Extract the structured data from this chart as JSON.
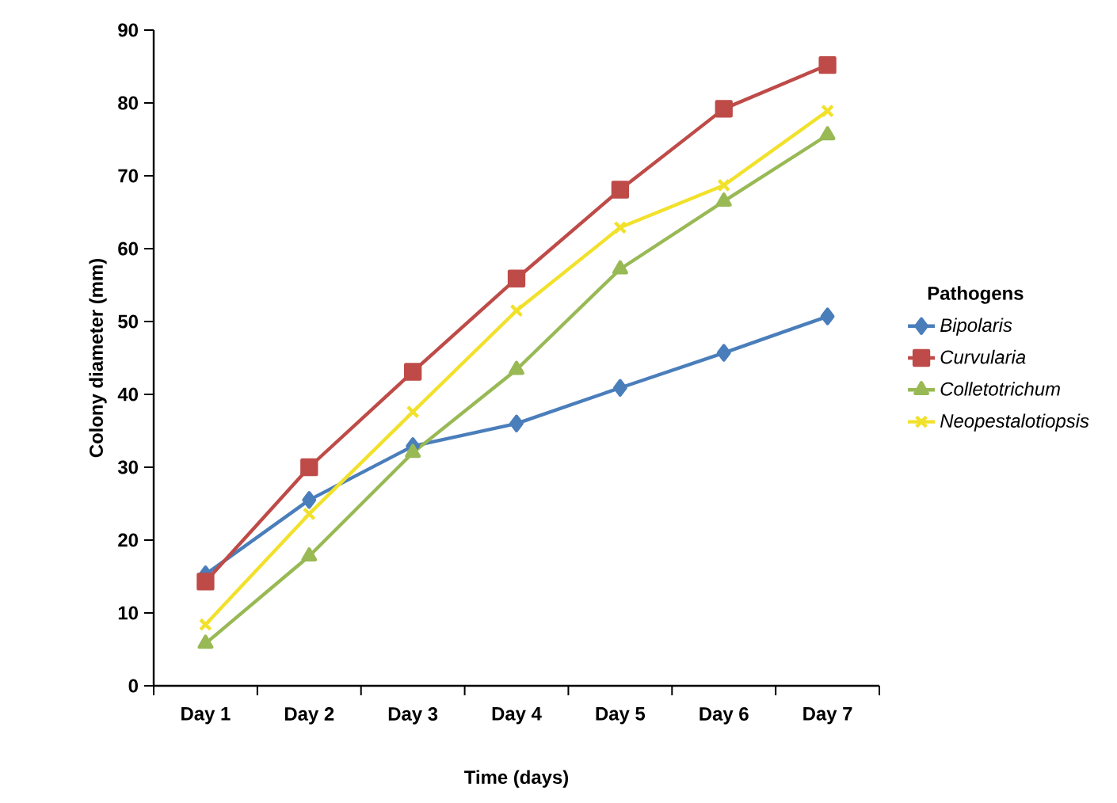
{
  "chart_data": {
    "type": "line",
    "xlabel": "Time (days)",
    "ylabel": "Colony diameter (mm)",
    "legend_title": "Pathogens",
    "categories": [
      "Day 1",
      "Day 2",
      "Day 3",
      "Day 4",
      "Day 5",
      "Day 6",
      "Day 7"
    ],
    "series": [
      {
        "name": "*Bipolaris*",
        "color": "#4a7ebb",
        "marker": "diamond",
        "values": [
          15.3,
          25.5,
          32.9,
          36,
          40.9,
          45.7,
          50.7
        ]
      },
      {
        "name": "*Curvularia*",
        "color": "#be4b48",
        "marker": "square",
        "values": [
          14.3,
          30,
          43.1,
          55.9,
          68.1,
          79.2,
          85.2
        ]
      },
      {
        "name": "*Colletotrichum*",
        "color": "#98b954",
        "marker": "triangle",
        "values": [
          5.8,
          17.8,
          32,
          43.4,
          57.2,
          66.5,
          75.6
        ]
      },
      {
        "name": "*Neopestalotiopsis*",
        "color": "#f2e12b",
        "marker": "cross",
        "values": [
          8.4,
          23.6,
          37.6,
          51.5,
          62.9,
          68.7,
          78.9
        ]
      }
    ],
    "ylim": [
      0,
      90
    ],
    "yticks": [
      0,
      10,
      20,
      30,
      40,
      50,
      60,
      70,
      80,
      90
    ],
    "grid": false,
    "legend": "right",
    "line_style": "solid"
  }
}
